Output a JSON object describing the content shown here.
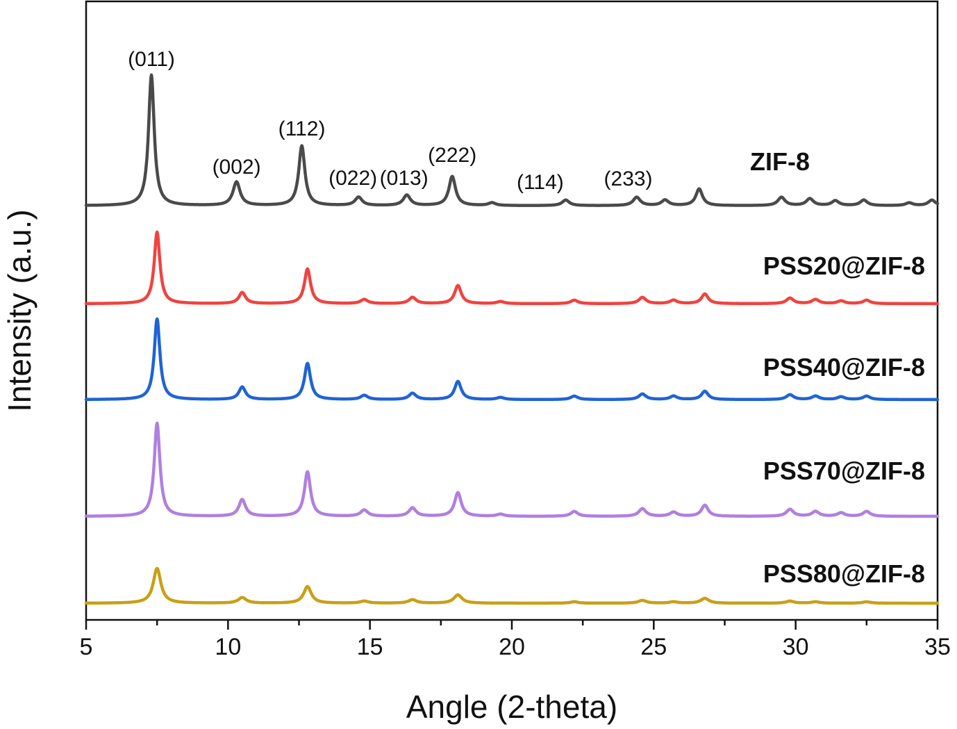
{
  "chart_data": {
    "type": "line",
    "title": "",
    "xlabel": "Angle (2-theta)",
    "ylabel": "Intensity (a.u.)",
    "xlim": [
      5,
      35
    ],
    "x_ticks": [
      "5",
      "10",
      "15",
      "20",
      "25",
      "30",
      "35"
    ],
    "y_ticks_shown": false,
    "grid": false,
    "legend": "series labels at right of each trace",
    "series": [
      {
        "name": "ZIF-8",
        "color": "#4a4a4a",
        "peaks": [
          {
            "x": 7.3,
            "h": 188,
            "w": 0.12
          },
          {
            "x": 10.3,
            "h": 34,
            "w": 0.15
          },
          {
            "x": 12.6,
            "h": 86,
            "w": 0.13
          },
          {
            "x": 14.6,
            "h": 12,
            "w": 0.15
          },
          {
            "x": 16.3,
            "h": 15,
            "w": 0.15
          },
          {
            "x": 17.9,
            "h": 42,
            "w": 0.14
          },
          {
            "x": 19.3,
            "h": 4,
            "w": 0.15
          },
          {
            "x": 21.9,
            "h": 8,
            "w": 0.15
          },
          {
            "x": 24.4,
            "h": 12,
            "w": 0.15
          },
          {
            "x": 25.4,
            "h": 8,
            "w": 0.15
          },
          {
            "x": 26.6,
            "h": 24,
            "w": 0.14
          },
          {
            "x": 29.5,
            "h": 12,
            "w": 0.15
          },
          {
            "x": 30.5,
            "h": 10,
            "w": 0.15
          },
          {
            "x": 31.4,
            "h": 7,
            "w": 0.15
          },
          {
            "x": 32.4,
            "h": 8,
            "w": 0.15
          },
          {
            "x": 34.0,
            "h": 4,
            "w": 0.15
          },
          {
            "x": 34.8,
            "h": 8,
            "w": 0.15
          }
        ],
        "peak_labels": [
          {
            "x": 7.3,
            "text": "(011)"
          },
          {
            "x": 10.3,
            "text": "(002)"
          },
          {
            "x": 12.6,
            "text": "(112)"
          },
          {
            "x": 14.4,
            "text": "(022)"
          },
          {
            "x": 16.2,
            "text": "(013)"
          },
          {
            "x": 17.9,
            "text": "(222)"
          },
          {
            "x": 21.0,
            "text": "(114)"
          },
          {
            "x": 24.1,
            "text": "(233)"
          }
        ]
      },
      {
        "name": "PSS20@ZIF-8",
        "color": "#f0433f",
        "peaks": [
          {
            "x": 7.5,
            "h": 103,
            "w": 0.12
          },
          {
            "x": 10.5,
            "h": 16,
            "w": 0.14
          },
          {
            "x": 12.8,
            "h": 50,
            "w": 0.13
          },
          {
            "x": 14.8,
            "h": 6,
            "w": 0.15
          },
          {
            "x": 16.5,
            "h": 9,
            "w": 0.15
          },
          {
            "x": 18.1,
            "h": 26,
            "w": 0.14
          },
          {
            "x": 19.6,
            "h": 3,
            "w": 0.15
          },
          {
            "x": 22.2,
            "h": 5,
            "w": 0.15
          },
          {
            "x": 24.6,
            "h": 9,
            "w": 0.15
          },
          {
            "x": 25.7,
            "h": 5,
            "w": 0.15
          },
          {
            "x": 26.8,
            "h": 14,
            "w": 0.14
          },
          {
            "x": 29.8,
            "h": 8,
            "w": 0.15
          },
          {
            "x": 30.7,
            "h": 6,
            "w": 0.15
          },
          {
            "x": 31.6,
            "h": 4,
            "w": 0.15
          },
          {
            "x": 32.5,
            "h": 5,
            "w": 0.15
          }
        ]
      },
      {
        "name": "PSS40@ZIF-8",
        "color": "#1f63d6",
        "peaks": [
          {
            "x": 7.5,
            "h": 116,
            "w": 0.12
          },
          {
            "x": 10.5,
            "h": 18,
            "w": 0.14
          },
          {
            "x": 12.8,
            "h": 52,
            "w": 0.13
          },
          {
            "x": 14.8,
            "h": 6,
            "w": 0.15
          },
          {
            "x": 16.5,
            "h": 9,
            "w": 0.15
          },
          {
            "x": 18.1,
            "h": 26,
            "w": 0.14
          },
          {
            "x": 19.6,
            "h": 3,
            "w": 0.15
          },
          {
            "x": 22.2,
            "h": 5,
            "w": 0.15
          },
          {
            "x": 24.6,
            "h": 8,
            "w": 0.15
          },
          {
            "x": 25.7,
            "h": 5,
            "w": 0.15
          },
          {
            "x": 26.8,
            "h": 12,
            "w": 0.14
          },
          {
            "x": 29.8,
            "h": 7,
            "w": 0.15
          },
          {
            "x": 30.7,
            "h": 5,
            "w": 0.15
          },
          {
            "x": 31.6,
            "h": 4,
            "w": 0.15
          },
          {
            "x": 32.5,
            "h": 5,
            "w": 0.15
          }
        ]
      },
      {
        "name": "PSS70@ZIF-8",
        "color": "#b07fe0",
        "peaks": [
          {
            "x": 7.5,
            "h": 134,
            "w": 0.12
          },
          {
            "x": 10.5,
            "h": 24,
            "w": 0.14
          },
          {
            "x": 12.8,
            "h": 64,
            "w": 0.13
          },
          {
            "x": 14.8,
            "h": 9,
            "w": 0.15
          },
          {
            "x": 16.5,
            "h": 12,
            "w": 0.15
          },
          {
            "x": 18.1,
            "h": 34,
            "w": 0.14
          },
          {
            "x": 19.6,
            "h": 3,
            "w": 0.15
          },
          {
            "x": 22.2,
            "h": 7,
            "w": 0.15
          },
          {
            "x": 24.6,
            "h": 11,
            "w": 0.15
          },
          {
            "x": 25.7,
            "h": 6,
            "w": 0.15
          },
          {
            "x": 26.8,
            "h": 16,
            "w": 0.14
          },
          {
            "x": 29.8,
            "h": 10,
            "w": 0.15
          },
          {
            "x": 30.7,
            "h": 7,
            "w": 0.15
          },
          {
            "x": 31.6,
            "h": 5,
            "w": 0.15
          },
          {
            "x": 32.5,
            "h": 7,
            "w": 0.15
          }
        ]
      },
      {
        "name": "PSS80@ZIF-8",
        "color": "#c9a016",
        "peaks": [
          {
            "x": 7.5,
            "h": 50,
            "w": 0.16
          },
          {
            "x": 10.5,
            "h": 8,
            "w": 0.17
          },
          {
            "x": 12.8,
            "h": 24,
            "w": 0.16
          },
          {
            "x": 14.8,
            "h": 3,
            "w": 0.17
          },
          {
            "x": 16.5,
            "h": 5,
            "w": 0.17
          },
          {
            "x": 18.1,
            "h": 12,
            "w": 0.17
          },
          {
            "x": 22.2,
            "h": 2,
            "w": 0.17
          },
          {
            "x": 24.6,
            "h": 4,
            "w": 0.17
          },
          {
            "x": 25.7,
            "h": 2,
            "w": 0.17
          },
          {
            "x": 26.8,
            "h": 7,
            "w": 0.17
          },
          {
            "x": 29.8,
            "h": 3,
            "w": 0.17
          },
          {
            "x": 30.7,
            "h": 2,
            "w": 0.17
          },
          {
            "x": 32.5,
            "h": 2,
            "w": 0.17
          }
        ]
      }
    ]
  }
}
